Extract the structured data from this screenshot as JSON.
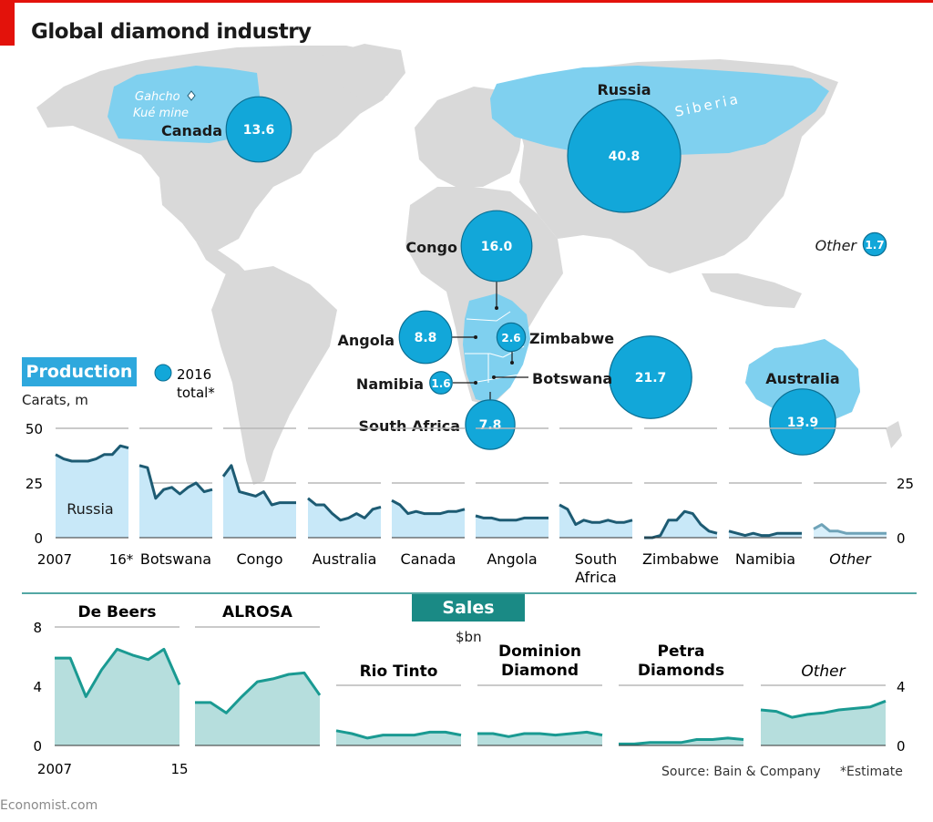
{
  "title": "Global diamond industry",
  "colors": {
    "accent_red": "#e3120b",
    "map_grey": "#d9d9d9",
    "map_highlight": "#7fd0ef",
    "bubble": "#12a7d9",
    "production_line": "#1d5b73",
    "production_fill": "#c8e8f8",
    "sales_line": "#1a9a92",
    "sales_fill": "#b6dedd",
    "sales_label_bg": "#1a8a85",
    "production_label_bg": "#2ea8dd"
  },
  "map": {
    "annotations": {
      "mine": "Gahcho Kué mine",
      "mine_line1": "Gahcho",
      "mine_line2": "Kué mine",
      "region": "Siberia"
    },
    "legend": {
      "line1": "2016",
      "line2": "total*"
    },
    "bubbles": [
      {
        "id": "canada",
        "label": "Canada",
        "value": "13.6"
      },
      {
        "id": "russia",
        "label": "Russia",
        "value": "40.8"
      },
      {
        "id": "congo",
        "label": "Congo",
        "value": "16.0"
      },
      {
        "id": "angola",
        "label": "Angola",
        "value": "8.8"
      },
      {
        "id": "zimbabwe",
        "label": "Zimbabwe",
        "value": "2.6"
      },
      {
        "id": "namibia",
        "label": "Namibia",
        "value": "1.6"
      },
      {
        "id": "botswana",
        "label": "Botswana",
        "value": "21.7"
      },
      {
        "id": "south-africa",
        "label": "South Africa",
        "value": "7.8"
      },
      {
        "id": "australia",
        "label": "Australia",
        "value": "13.9"
      },
      {
        "id": "other",
        "label": "Other",
        "value": "1.7"
      }
    ]
  },
  "production": {
    "label": "Production",
    "unit": "Carats, m",
    "x_start": "2007",
    "x_end": "16*"
  },
  "sales": {
    "label": "Sales",
    "unit": "$bn",
    "x_start": "2007",
    "x_end": "15"
  },
  "footer": {
    "source": "Source: Bain & Company",
    "note": "*Estimate",
    "brand": "Economist.com"
  },
  "chart_data": [
    {
      "type": "area",
      "title": "Production",
      "ylabel": "Carats, m",
      "ylim": [
        0,
        50
      ],
      "yticks": [
        0,
        25,
        50
      ],
      "x": [
        2007,
        2008,
        2009,
        2010,
        2011,
        2012,
        2013,
        2014,
        2015,
        2016
      ],
      "series": [
        {
          "name": "Russia",
          "values": [
            38,
            36,
            35,
            35,
            35,
            36,
            38,
            38,
            42,
            41
          ]
        },
        {
          "name": "Botswana",
          "values": [
            33,
            32,
            18,
            22,
            23,
            20,
            23,
            25,
            21,
            22
          ]
        },
        {
          "name": "Congo",
          "values": [
            28,
            33,
            21,
            20,
            19,
            21,
            15,
            16,
            16,
            16
          ]
        },
        {
          "name": "Australia",
          "values": [
            18,
            15,
            15,
            11,
            8,
            9,
            11,
            9,
            13,
            14
          ]
        },
        {
          "name": "Canada",
          "values": [
            17,
            15,
            11,
            12,
            11,
            11,
            11,
            12,
            12,
            13
          ]
        },
        {
          "name": "Angola",
          "values": [
            10,
            9,
            9,
            8,
            8,
            8,
            9,
            9,
            9,
            9
          ]
        },
        {
          "name": "South Africa",
          "values": [
            15,
            13,
            6,
            8,
            7,
            7,
            8,
            7,
            7,
            8
          ]
        },
        {
          "name": "Zimbabwe",
          "values": [
            0,
            0,
            1,
            8,
            8,
            12,
            11,
            6,
            3,
            2
          ]
        },
        {
          "name": "Namibia",
          "values": [
            3,
            2,
            1,
            2,
            1,
            1,
            2,
            2,
            2,
            2
          ]
        },
        {
          "name": "Other",
          "values": [
            4,
            6,
            3,
            3,
            2,
            2,
            2,
            2,
            2,
            2
          ]
        }
      ]
    },
    {
      "type": "area",
      "title": "Sales",
      "ylabel": "$bn",
      "ylim": [
        0,
        8
      ],
      "yticks": [
        0,
        4,
        8
      ],
      "x": [
        2007,
        2008,
        2009,
        2010,
        2011,
        2012,
        2013,
        2014,
        2015
      ],
      "series": [
        {
          "name": "De Beers",
          "values": [
            5.9,
            5.9,
            3.3,
            5.1,
            6.5,
            6.1,
            5.8,
            6.5,
            4.1
          ]
        },
        {
          "name": "ALROSA",
          "values": [
            2.9,
            2.9,
            2.2,
            3.3,
            4.3,
            4.5,
            4.8,
            4.9,
            3.4
          ]
        },
        {
          "name": "Rio Tinto",
          "values": [
            1.0,
            0.8,
            0.5,
            0.7,
            0.7,
            0.7,
            0.9,
            0.9,
            0.7
          ]
        },
        {
          "name": "Dominion Diamond",
          "values": [
            0.8,
            0.8,
            0.6,
            0.8,
            0.8,
            0.7,
            0.8,
            0.9,
            0.7
          ]
        },
        {
          "name": "Petra Diamonds",
          "values": [
            0.1,
            0.1,
            0.2,
            0.2,
            0.2,
            0.4,
            0.4,
            0.5,
            0.4
          ]
        },
        {
          "name": "Other",
          "values": [
            2.4,
            2.3,
            1.9,
            2.1,
            2.2,
            2.4,
            2.5,
            2.6,
            3.0
          ]
        }
      ]
    }
  ]
}
